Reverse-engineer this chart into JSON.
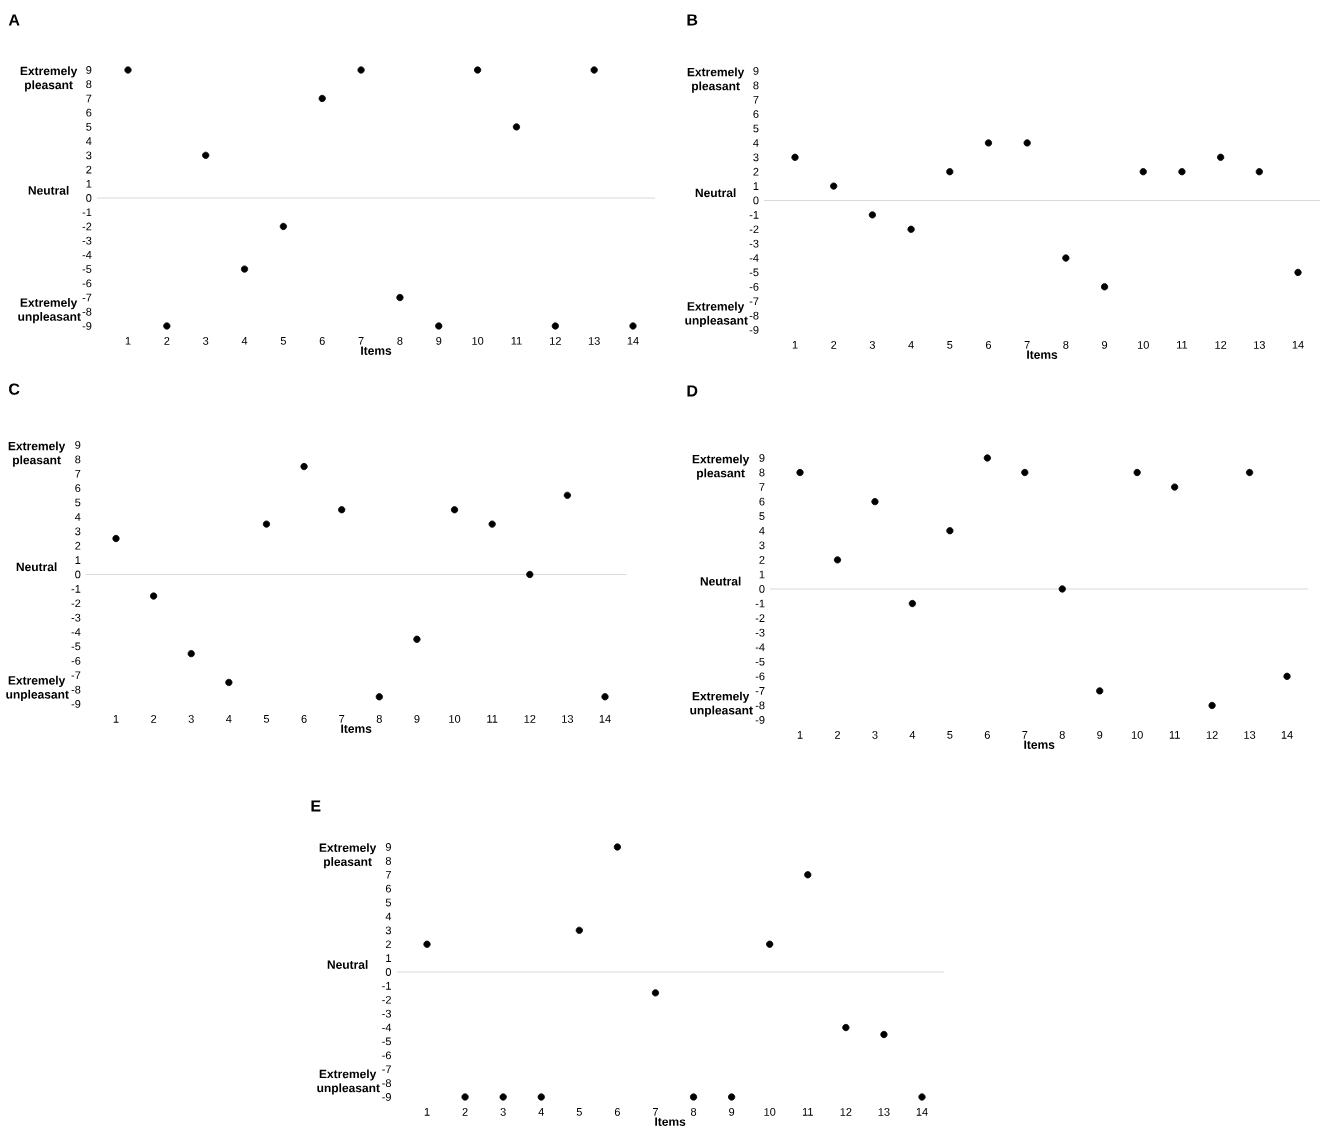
{
  "chart_data": [
    {
      "type": "scatter",
      "title": "A",
      "xlabel": "Items",
      "categories": [
        "1",
        "2",
        "3",
        "4",
        "5",
        "6",
        "7",
        "8",
        "9",
        "10",
        "11",
        "12",
        "13",
        "14"
      ],
      "values": [
        9,
        -9,
        3,
        -5,
        -2,
        7,
        9,
        -7,
        -9,
        9,
        5,
        -9,
        9,
        -9
      ],
      "color": "#000000",
      "marker": "circle",
      "ylim": [
        -9,
        9
      ],
      "yticks": [
        -9,
        -8,
        -7,
        -6,
        -5,
        -4,
        -3,
        -2,
        -1,
        0,
        1,
        2,
        3,
        4,
        5,
        6,
        7,
        8,
        9
      ],
      "ref_lines": [
        {
          "axis": "y",
          "value": 0,
          "color": "#d9d9d9"
        }
      ],
      "annotations": [
        "Extremely pleasant",
        "Neutral",
        "Extremely unpleasant"
      ]
    },
    {
      "type": "scatter",
      "title": "B",
      "xlabel": "Items",
      "categories": [
        "1",
        "2",
        "3",
        "4",
        "5",
        "6",
        "7",
        "8",
        "9",
        "10",
        "11",
        "12",
        "13",
        "14"
      ],
      "values": [
        3,
        1,
        -1,
        -2,
        2,
        4,
        4,
        -4,
        -6,
        2,
        2,
        3,
        2,
        -5
      ],
      "color": "#000000",
      "marker": "circle",
      "ylim": [
        -9,
        9
      ],
      "yticks": [
        -9,
        -8,
        -7,
        -6,
        -5,
        -4,
        -3,
        -2,
        -1,
        0,
        1,
        2,
        3,
        4,
        5,
        6,
        7,
        8,
        9
      ],
      "ref_lines": [
        {
          "axis": "y",
          "value": 0,
          "color": "#d9d9d9"
        }
      ],
      "annotations": [
        "Extremely pleasant",
        "Neutral",
        "Extremely unpleasant"
      ]
    },
    {
      "type": "scatter",
      "title": "C",
      "xlabel": "Items",
      "categories": [
        "1",
        "2",
        "3",
        "4",
        "5",
        "6",
        "7",
        "8",
        "9",
        "10",
        "11",
        "12",
        "13",
        "14"
      ],
      "values": [
        2.5,
        -1.5,
        -5.5,
        -7.5,
        3.5,
        7.5,
        4.5,
        -8.5,
        -4.5,
        4.5,
        3.5,
        0,
        5.5,
        -8.5
      ],
      "color": "#000000",
      "marker": "circle",
      "ylim": [
        -9,
        9
      ],
      "yticks": [
        -9,
        -8,
        -7,
        -6,
        -5,
        -4,
        -3,
        -2,
        -1,
        0,
        1,
        2,
        3,
        4,
        5,
        6,
        7,
        8,
        9
      ],
      "ref_lines": [
        {
          "axis": "y",
          "value": 0,
          "color": "#d9d9d9"
        }
      ],
      "annotations": [
        "Extremely pleasant",
        "Neutral",
        "Extremely unpleasant"
      ]
    },
    {
      "type": "scatter",
      "title": "D",
      "xlabel": "Items",
      "categories": [
        "1",
        "2",
        "3",
        "4",
        "5",
        "6",
        "7",
        "8",
        "9",
        "10",
        "11",
        "12",
        "13",
        "14"
      ],
      "values": [
        8,
        2,
        6,
        -1,
        4,
        9,
        8,
        0,
        -7,
        8,
        7,
        -8,
        8,
        -6
      ],
      "color": "#000000",
      "marker": "circle",
      "ylim": [
        -9,
        9
      ],
      "yticks": [
        -9,
        -8,
        -7,
        -6,
        -5,
        -4,
        -3,
        -2,
        -1,
        0,
        1,
        2,
        3,
        4,
        5,
        6,
        7,
        8,
        9
      ],
      "ref_lines": [
        {
          "axis": "y",
          "value": 0,
          "color": "#d9d9d9"
        }
      ],
      "annotations": [
        "Extremely pleasant",
        "Neutral",
        "Extremely unpleasant"
      ]
    },
    {
      "type": "scatter",
      "title": "E",
      "xlabel": "Items",
      "categories": [
        "1",
        "2",
        "3",
        "4",
        "5",
        "6",
        "7",
        "8",
        "9",
        "10",
        "11",
        "12",
        "13",
        "14"
      ],
      "values": [
        2,
        -9,
        -9,
        -9,
        3,
        9,
        -1.5,
        -9,
        -9,
        2,
        7,
        -4,
        -4.5,
        -9
      ],
      "color": "#000000",
      "marker": "circle",
      "ylim": [
        -9,
        9
      ],
      "yticks": [
        -9,
        -8,
        -7,
        -6,
        -5,
        -4,
        -3,
        -2,
        -1,
        0,
        1,
        2,
        3,
        4,
        5,
        6,
        7,
        8,
        9
      ],
      "ref_lines": [
        {
          "axis": "y",
          "value": 0,
          "color": "#d9d9d9"
        }
      ],
      "annotations": [
        "Extremely pleasant",
        "Neutral",
        "Extremely unpleasant"
      ]
    }
  ]
}
